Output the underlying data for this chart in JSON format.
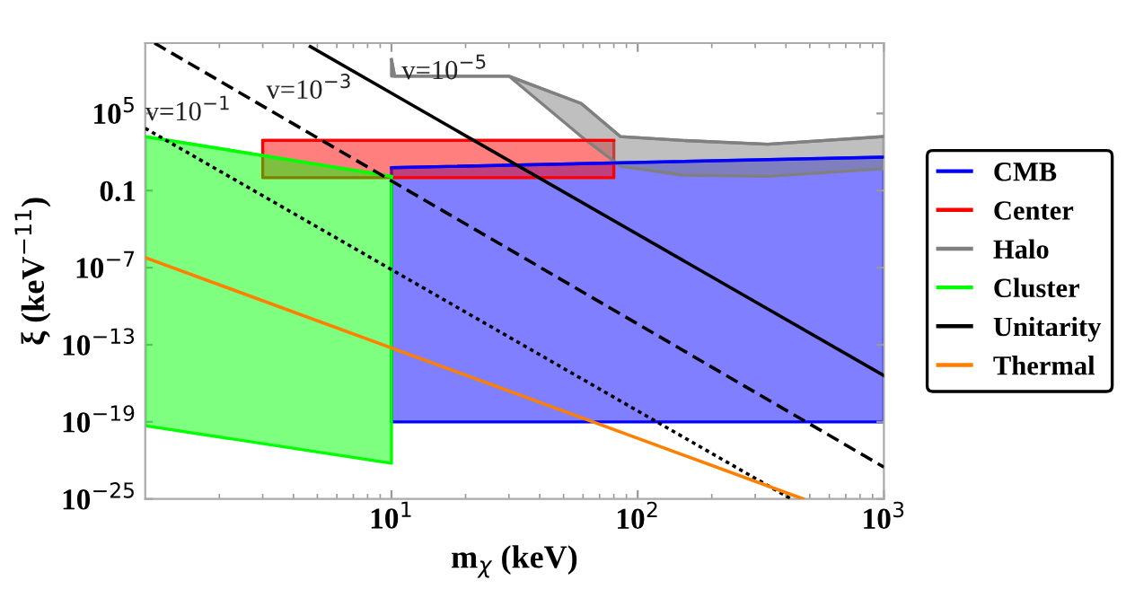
{
  "chart_data": {
    "type": "line",
    "xlabel": "m$_{χ}$ (keV)",
    "ylabel": "ξ (keV$^{−11}$)",
    "log": "xy",
    "xlim": [
      1,
      1000
    ],
    "ylim": [
      1e-25,
      30000000000.0
    ],
    "xticks": [
      {
        "value": 10,
        "label": "10$^{1}$"
      },
      {
        "value": 100,
        "label": "10$^{2}$"
      },
      {
        "value": 1000,
        "label": "10$^{3}$"
      }
    ],
    "yticks": [
      {
        "value": 1e-25,
        "label": "10$^{−25}$"
      },
      {
        "value": 1e-19,
        "label": "10$^{−19}$"
      },
      {
        "value": 1e-13,
        "label": "10$^{−13}$"
      },
      {
        "value": 1e-07,
        "label": "10$^{−7}$"
      },
      0.1,
      {
        "value": 100000.0,
        "label": "10$^{5}$"
      }
    ],
    "grid": false,
    "legend": "right",
    "series": [
      {
        "name": "CMB",
        "color": "#0000ff",
        "x": [
          10,
          1000
        ],
        "values": [
          6,
          40
        ],
        "lower": [
          1e-19,
          1e-19
        ],
        "upper": [
          6,
          40
        ]
      },
      {
        "name": "Center",
        "color": "#ff0000",
        "x": [
          3,
          80
        ],
        "values": [
          800,
          800
        ],
        "lower": [
          1,
          1
        ],
        "upper": [
          800,
          800
        ]
      },
      {
        "name": "Halo",
        "color": "#808080",
        "x": [
          10,
          10.3,
          30,
          59,
          85,
          152,
          337,
          1000
        ],
        "values": [
          1600000000.0,
          80000000.0,
          80000000.0,
          600000.0,
          1600.0,
          800.0,
          400.0,
          1600.0
        ],
        "lower": [
          80000000.0,
          80000000.0,
          80000000.0,
          1600.0,
          8,
          1.6,
          1.3,
          5
        ],
        "upper": [
          1600000000.0,
          80000000.0,
          80000000.0,
          600000.0,
          1600.0,
          800.0,
          400.0,
          1600.0
        ]
      },
      {
        "name": "Cluster",
        "color": "#00ff00",
        "x": [
          1,
          10
        ],
        "values": [
          1600.0,
          1.3
        ],
        "lower": [
          5e-20,
          6e-23
        ],
        "upper": [
          1600.0,
          1.3
        ]
      },
      {
        "name": "Unitarity",
        "color": "#000000",
        "line_style": "solid",
        "x": [
          4.68,
          1000
        ],
        "values": [
          16000000000.0,
          4e-16
        ]
      },
      {
        "color": "#000000",
        "line_style": "dashed",
        "x": [
          1.09,
          1000
        ],
        "values": [
          30000000000.0,
          3e-23
        ]
      },
      {
        "color": "#000000",
        "line_style": "dotted",
        "x": [
          1,
          420
        ],
        "values": [
          7000.0,
          1e-25
        ]
      },
      {
        "name": "Thermal",
        "color": "#ff8000",
        "line_style": "solid",
        "x": [
          1,
          470
        ],
        "values": [
          6e-07,
          1e-25
        ]
      }
    ],
    "annotations": [
      {
        "text": "v=10$^{−1}$",
        "x": 1,
        "y": 10000.0
      },
      {
        "text": "v=10$^{−3}$",
        "x": 3.1,
        "y": 500000.0
      },
      {
        "text": "v=10$^{−5}$",
        "x": 11,
        "y": 16000000.0
      }
    ]
  }
}
